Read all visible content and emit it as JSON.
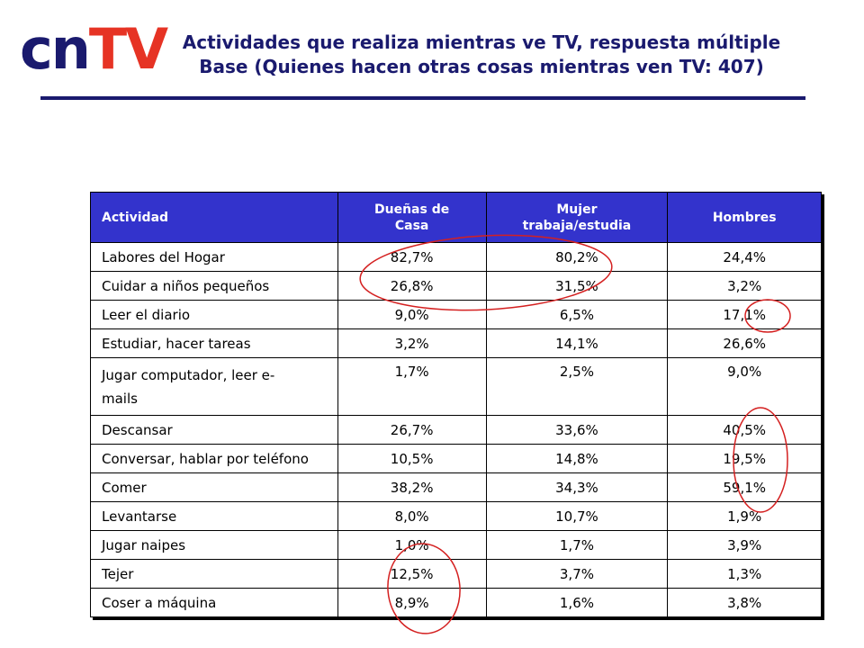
{
  "logo": {
    "part1": "cn",
    "part2": "TV"
  },
  "title": {
    "line1": "Actividades que realiza mientras ve TV, respuesta múltiple",
    "line2": "Base (Quienes hacen otras cosas mientras ven TV: 407)"
  },
  "table": {
    "headers": [
      "Actividad",
      "Dueñas de Casa",
      "Mujer trabaja/estudia",
      "Hombres"
    ],
    "rows": [
      [
        "Labores del Hogar",
        "82,7%",
        "80,2%",
        "24,4%"
      ],
      [
        "Cuidar a niños pequeños",
        "26,8%",
        "31,5%",
        "3,2%"
      ],
      [
        "Leer el diario",
        "9,0%",
        "6,5%",
        "17,1%"
      ],
      [
        "Estudiar, hacer tareas",
        "3,2%",
        "14,1%",
        "26,6%"
      ],
      [
        "Jugar computador, leer e-mails",
        "1,7%",
        "2,5%",
        "9,0%"
      ],
      [
        "Descansar",
        "26,7%",
        "33,6%",
        "40,5%"
      ],
      [
        "Conversar, hablar por teléfono",
        "10,5%",
        "14,8%",
        "19,5%"
      ],
      [
        "Comer",
        "38,2%",
        "34,3%",
        "59,1%"
      ],
      [
        "Levantarse",
        "8,0%",
        "10,7%",
        "1,9%"
      ],
      [
        "Jugar naipes",
        "1,0%",
        "1,7%",
        "3,9%"
      ],
      [
        "Tejer",
        "12,5%",
        "3,7%",
        "1,3%"
      ],
      [
        "Coser a máquina",
        "8,9%",
        "1,6%",
        "3,8%"
      ]
    ]
  },
  "colors": {
    "navy": "#1a1a6e",
    "header_bg": "#3333cc",
    "red": "#e63324",
    "highlight": "#d42020"
  }
}
